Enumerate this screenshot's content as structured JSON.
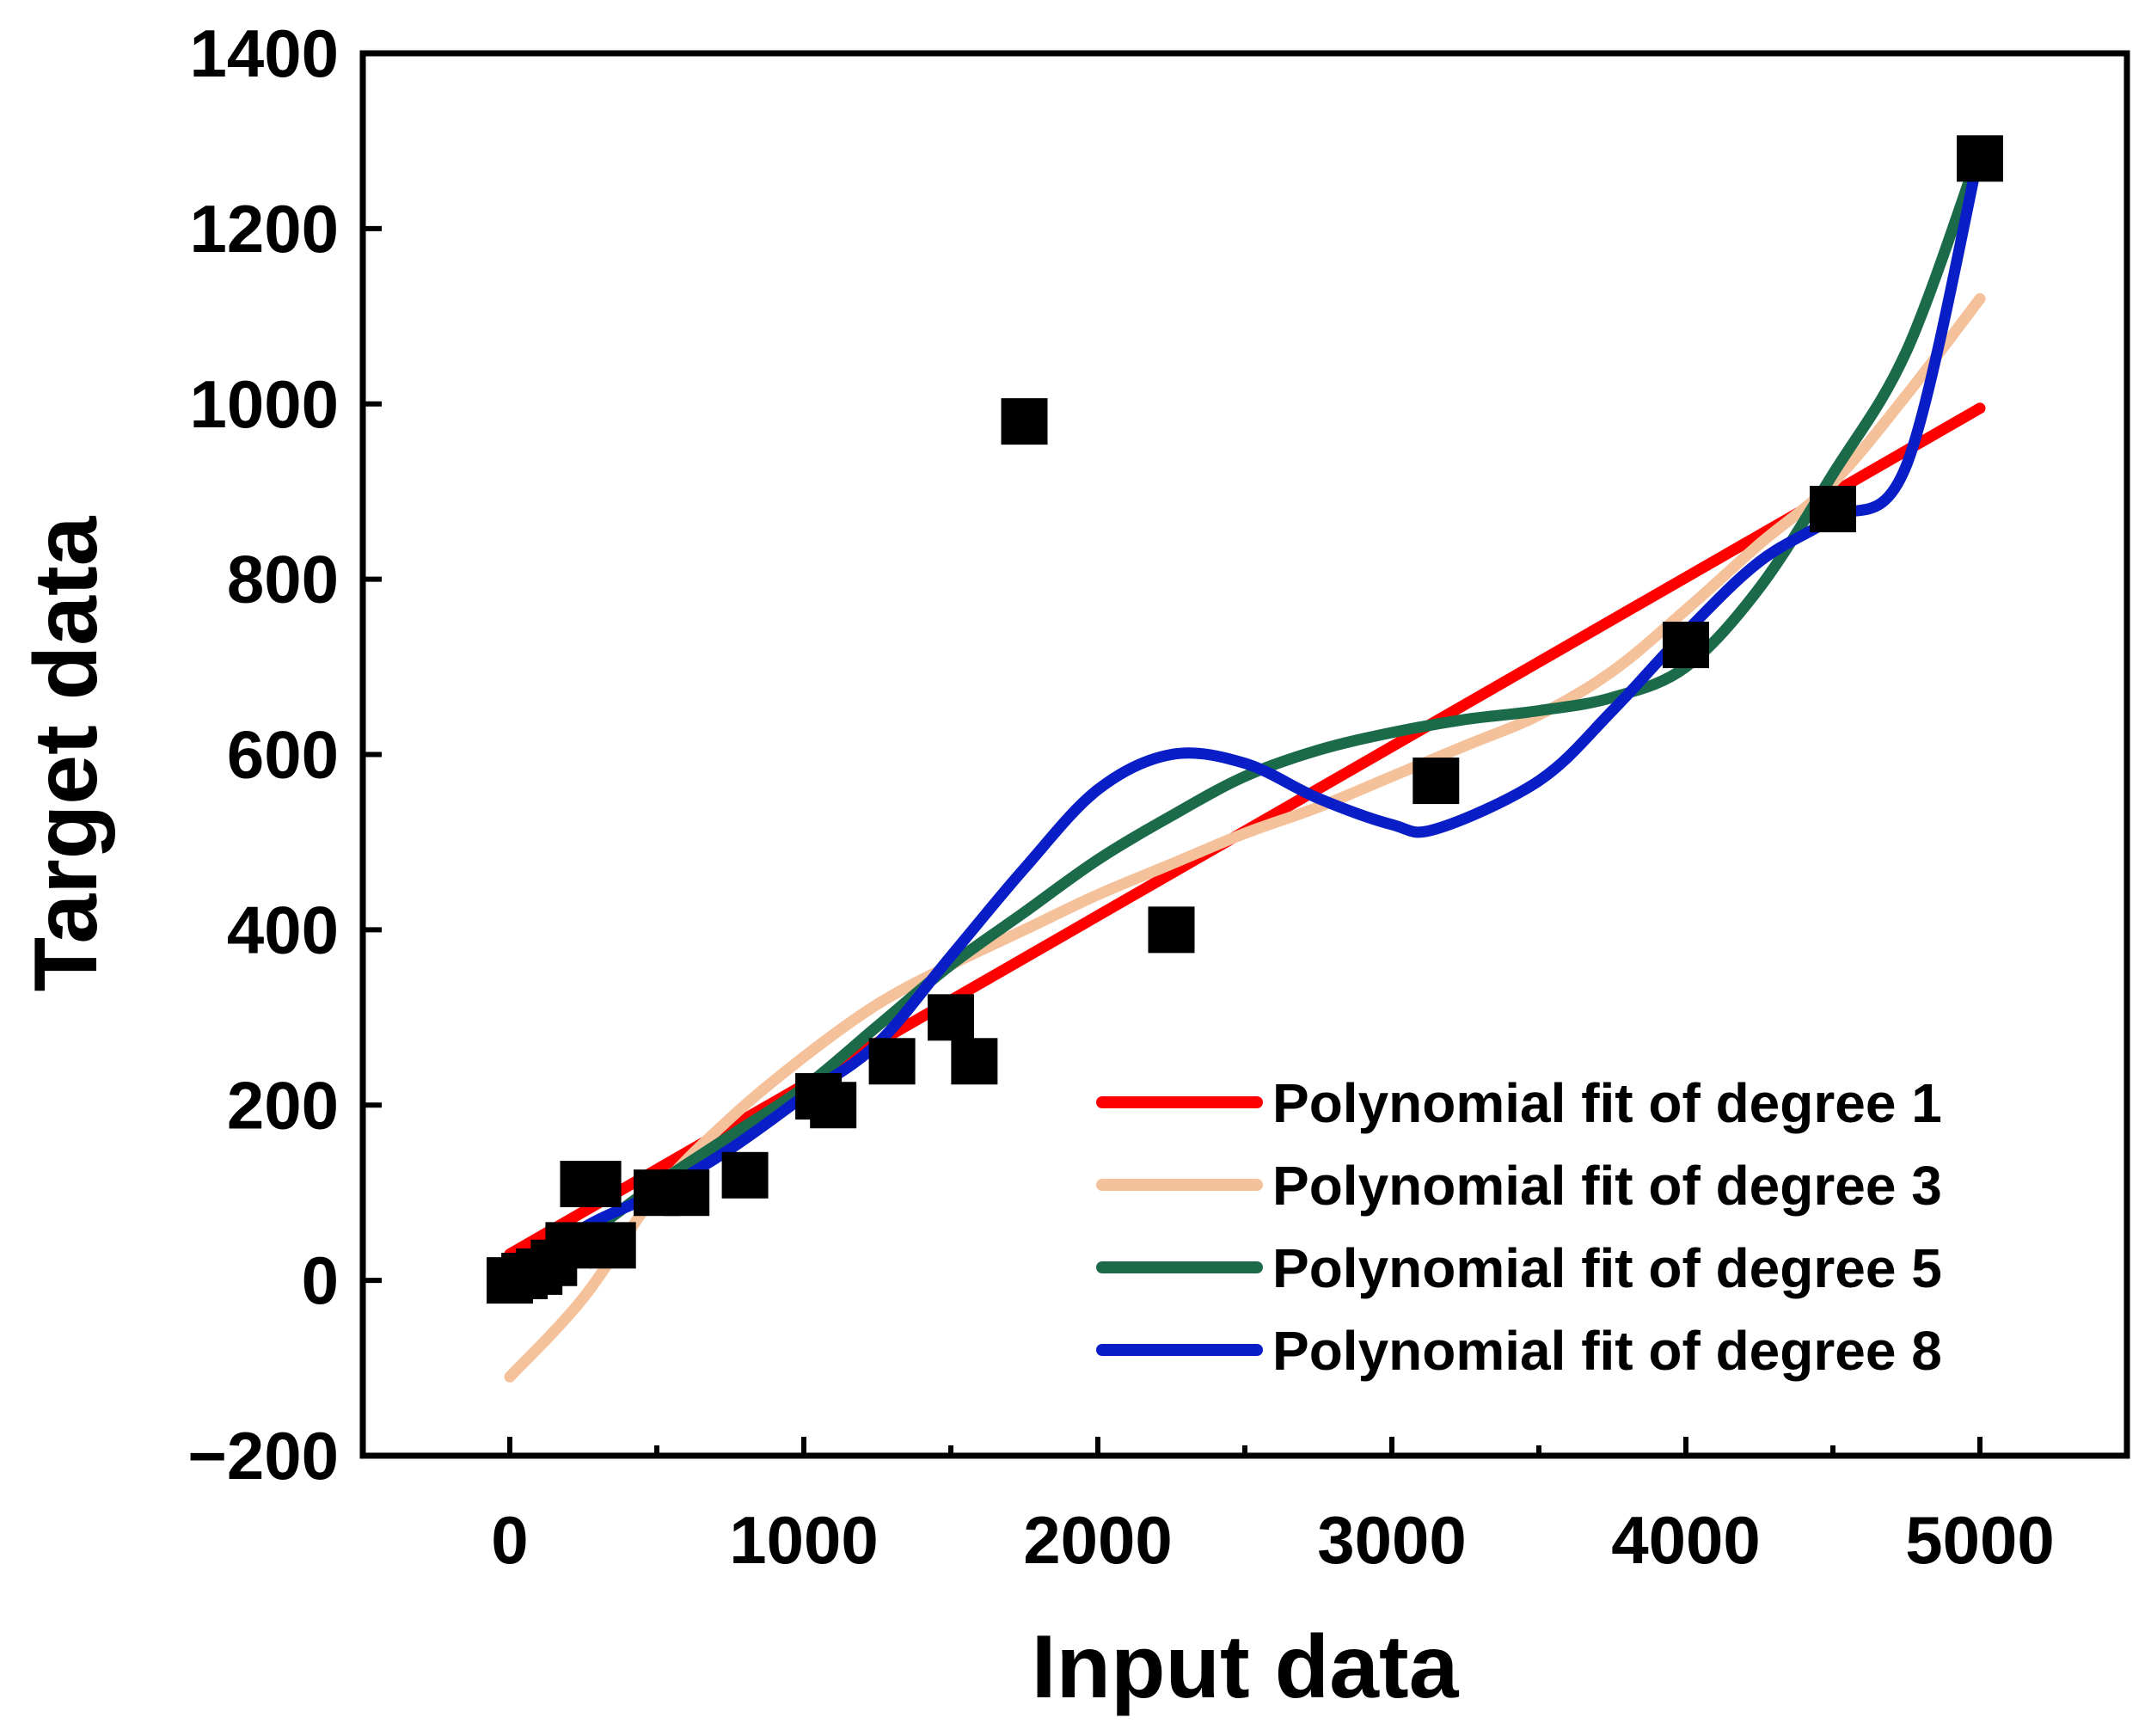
{
  "chart_data": {
    "type": "scatter",
    "title": "",
    "xlabel": "Input data",
    "ylabel": "Target data",
    "xlim": [
      -500,
      5500
    ],
    "ylim": [
      -200,
      1400
    ],
    "x_ticks": [
      0,
      1000,
      2000,
      3000,
      4000,
      5000
    ],
    "x_tick_labels": [
      "0",
      "1000",
      "2000",
      "3000",
      "4000",
      "5000"
    ],
    "x_minor_ticks": [
      500,
      1500,
      2500,
      3500,
      4500
    ],
    "y_ticks": [
      -200,
      0,
      200,
      400,
      600,
      800,
      1000,
      1200,
      1400
    ],
    "y_tick_labels": [
      "−200",
      "0",
      "200",
      "400",
      "600",
      "800",
      "1000",
      "1200",
      "1400"
    ],
    "grid": false,
    "legend_position": "bottom-right",
    "points": {
      "name": "Data",
      "color": "#000000",
      "x": [
        0,
        50,
        100,
        150,
        200,
        250,
        300,
        350,
        500,
        600,
        800,
        1050,
        1100,
        1300,
        1500,
        1580,
        1750,
        2250,
        3150,
        4000,
        4500,
        5000
      ],
      "y": [
        0,
        5,
        10,
        20,
        40,
        110,
        110,
        40,
        100,
        100,
        120,
        210,
        200,
        250,
        300,
        250,
        980,
        400,
        570,
        725,
        880,
        1280
      ]
    },
    "series": [
      {
        "name": "Polynomial fit of degree 1",
        "color": "#ff0000",
        "x": [
          0,
          5000
        ],
        "y": [
          30,
          995
        ]
      },
      {
        "name": "Polynomial fit of degree 3",
        "color": "#f5c19a",
        "x": [
          0,
          250,
          500,
          750,
          1000,
          1250,
          1500,
          1750,
          2000,
          2250,
          2500,
          2750,
          3000,
          3250,
          3500,
          3750,
          4000,
          4250,
          4500,
          4750,
          5000
        ],
        "y": [
          -110,
          -20,
          100,
          185,
          255,
          315,
          360,
          400,
          440,
          475,
          510,
          540,
          575,
          610,
          645,
          695,
          765,
          840,
          910,
          1010,
          1120
        ]
      },
      {
        "name": "Polynomial fit of degree 5",
        "color": "#1b6b4a",
        "x": [
          0,
          250,
          500,
          750,
          1000,
          1250,
          1500,
          1750,
          2000,
          2250,
          2500,
          2750,
          3000,
          3250,
          3500,
          3750,
          4000,
          4250,
          4500,
          4750,
          5000
        ],
        "y": [
          5,
          50,
          110,
          165,
          220,
          290,
          360,
          420,
          480,
          530,
          575,
          605,
          625,
          640,
          650,
          665,
          700,
          790,
          920,
          1060,
          1290
        ]
      },
      {
        "name": "Polynomial fit of degree 8",
        "color": "#0a1ec8",
        "x": [
          0,
          250,
          500,
          750,
          1000,
          1250,
          1500,
          1750,
          2000,
          2250,
          2500,
          2750,
          3000,
          3150,
          3500,
          3750,
          4000,
          4250,
          4500,
          4750,
          5000
        ],
        "y": [
          0,
          60,
          100,
          150,
          210,
          270,
          370,
          470,
          560,
          600,
          590,
          550,
          520,
          515,
          570,
          650,
          740,
          820,
          870,
          930,
          1290
        ]
      }
    ]
  }
}
